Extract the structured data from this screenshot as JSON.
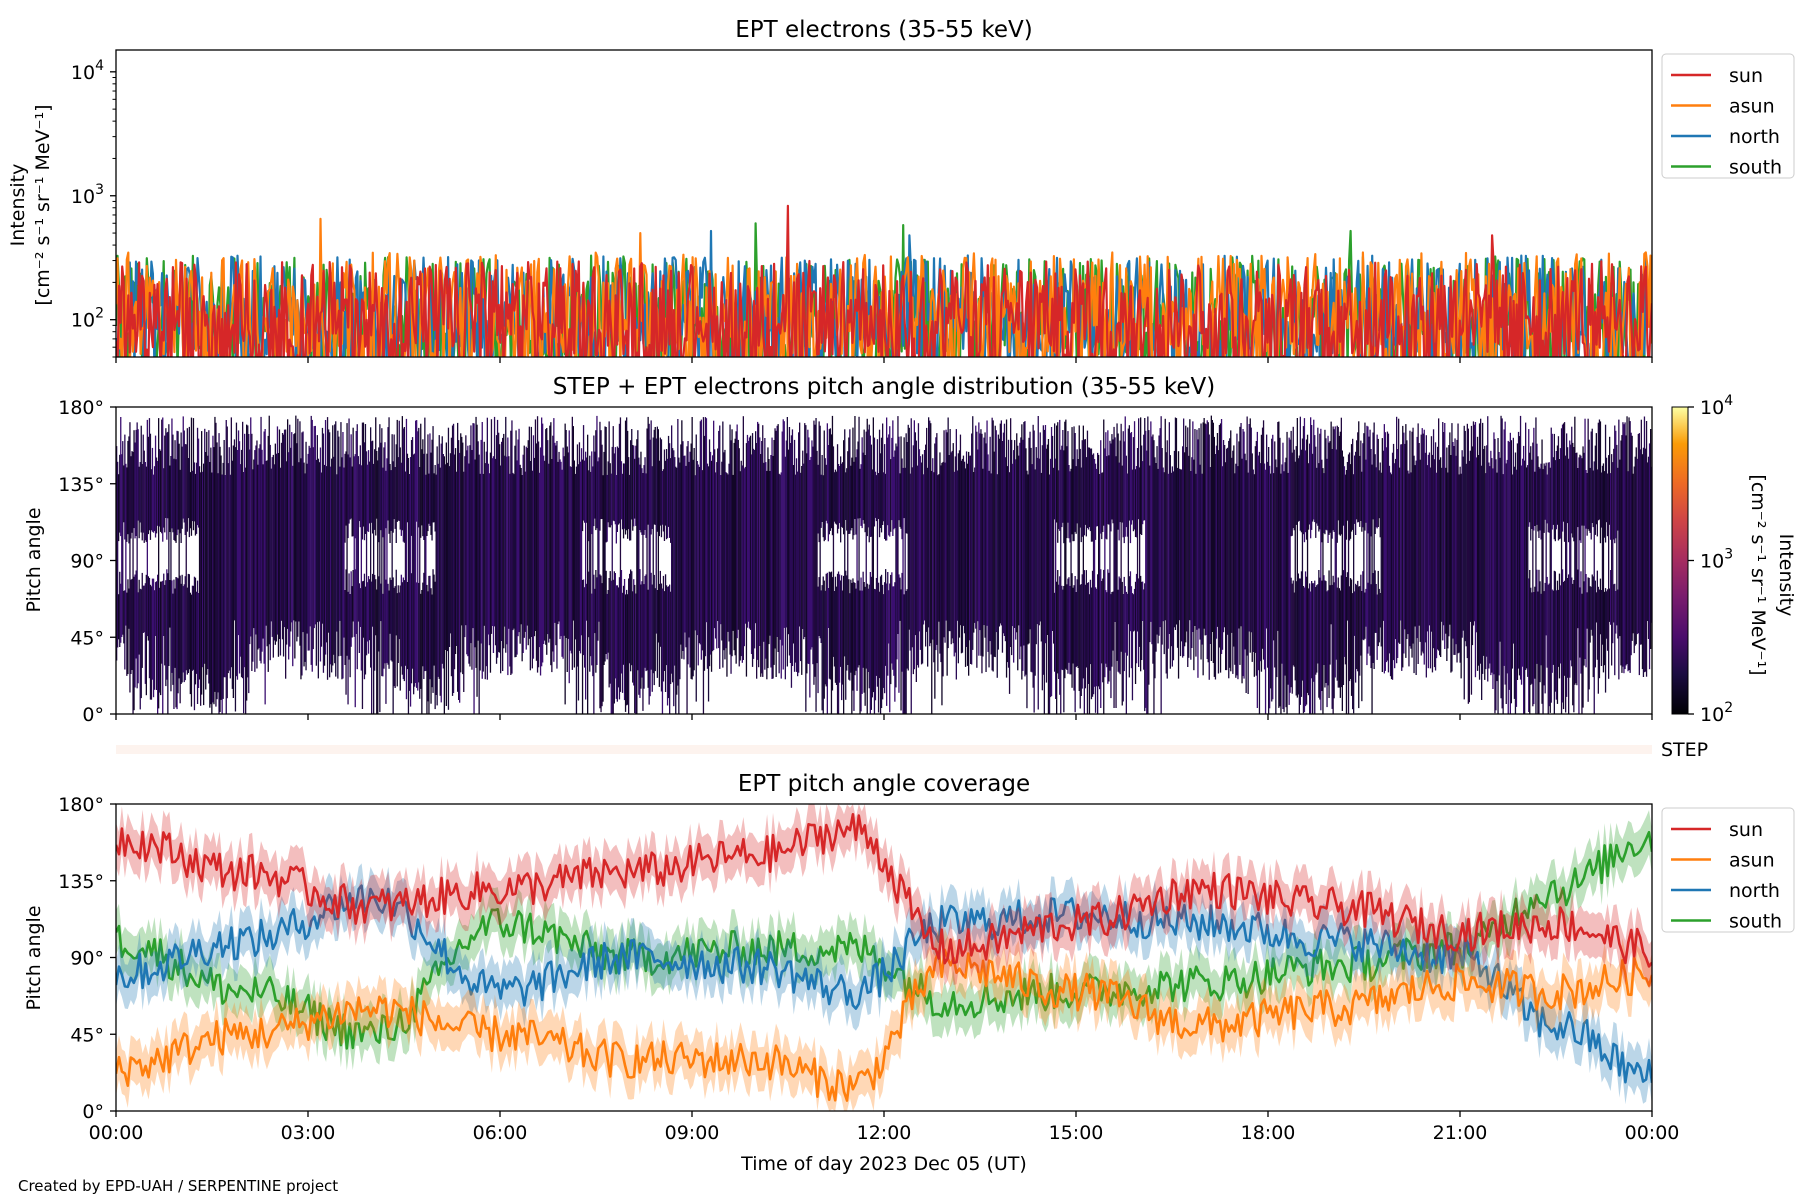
{
  "figure": {
    "footer": "Created by EPD-UAH / SERPENTINE project",
    "xlabel": "Time of day 2023 Dec 05 (UT)",
    "xticks": [
      "00:00",
      "03:00",
      "06:00",
      "09:00",
      "12:00",
      "15:00",
      "18:00",
      "21:00",
      "00:00"
    ]
  },
  "colors": {
    "sun": "#d62728",
    "asun": "#ff7f0e",
    "north": "#1f77b4",
    "south": "#2ca02c",
    "step_band": "#fdf3ee"
  },
  "chart_data": [
    {
      "type": "line",
      "title": "EPT electrons (35-55 keV)",
      "ylabel_line1": "Intensity",
      "ylabel_line2": "[cm⁻² s⁻¹ sr⁻¹ MeV⁻¹]",
      "yscale": "log",
      "ylim": [
        50,
        15000
      ],
      "yticks": [
        {
          "value": 100,
          "base": "10",
          "exp": "2"
        },
        {
          "value": 1000,
          "base": "10",
          "exp": "3"
        },
        {
          "value": 10000,
          "base": "10",
          "exp": "4"
        }
      ],
      "x_range_hours": [
        0,
        24
      ],
      "legend": [
        "sun",
        "asun",
        "north",
        "south"
      ],
      "legend_position": "outside-upper-right",
      "series": [
        {
          "name": "sun",
          "typical_range": [
            50,
            300
          ],
          "peaks": [
            {
              "x": 10.5,
              "y": 830
            },
            {
              "x": 21.5,
              "y": 480
            }
          ]
        },
        {
          "name": "asun",
          "typical_range": [
            50,
            350
          ],
          "peaks": [
            {
              "x": 3.2,
              "y": 650
            },
            {
              "x": 8.2,
              "y": 500
            }
          ]
        },
        {
          "name": "north",
          "typical_range": [
            50,
            330
          ],
          "peaks": [
            {
              "x": 9.3,
              "y": 520
            },
            {
              "x": 12.4,
              "y": 480
            }
          ]
        },
        {
          "name": "south",
          "typical_range": [
            50,
            330
          ],
          "peaks": [
            {
              "x": 10.0,
              "y": 600
            },
            {
              "x": 12.3,
              "y": 580
            },
            {
              "x": 19.3,
              "y": 520
            }
          ]
        }
      ]
    },
    {
      "type": "heatmap",
      "title": "STEP + EPT electrons pitch angle distribution (35-55 keV)",
      "ylabel": "Pitch angle",
      "ylim": [
        0,
        180
      ],
      "yticks": [
        "0°",
        "45°",
        "90°",
        "135°",
        "180°"
      ],
      "x_range_hours": [
        0,
        24
      ],
      "colorbar": {
        "label_line1": "Intensity",
        "label_line2": "[cm⁻² s⁻¹ sr⁻¹ MeV⁻¹]",
        "scale": "log",
        "range": [
          100,
          10000
        ],
        "ticks": [
          {
            "base": "10",
            "exp": "2"
          },
          {
            "base": "10",
            "exp": "3"
          },
          {
            "base": "10",
            "exp": "4"
          }
        ],
        "colormap": "inferno"
      },
      "step_label": "STEP"
    },
    {
      "type": "line",
      "title": "EPT pitch angle coverage",
      "ylabel": "Pitch angle",
      "ylim": [
        0,
        180
      ],
      "yticks": [
        "0°",
        "45°",
        "90°",
        "135°",
        "180°"
      ],
      "x_range_hours": [
        0,
        24
      ],
      "legend": [
        "sun",
        "asun",
        "north",
        "south"
      ],
      "legend_position": "outside-upper-right",
      "series": [
        {
          "name": "sun",
          "x": [
            0,
            2,
            4,
            6,
            8,
            10,
            11.5,
            13,
            15,
            17,
            19,
            21,
            22.5,
            24
          ],
          "y": [
            160,
            140,
            120,
            130,
            140,
            150,
            165,
            95,
            110,
            130,
            120,
            105,
            110,
            95
          ]
        },
        {
          "name": "asun",
          "x": [
            0,
            2,
            4,
            6,
            8,
            10,
            11.5,
            13,
            15,
            17,
            19,
            21,
            22.5,
            24
          ],
          "y": [
            25,
            45,
            60,
            45,
            30,
            30,
            15,
            85,
            70,
            50,
            60,
            75,
            70,
            80
          ]
        },
        {
          "name": "north",
          "x": [
            0,
            2,
            4,
            6,
            8,
            10,
            11.5,
            13,
            15,
            17,
            19,
            21,
            22.5,
            24
          ],
          "y": [
            80,
            100,
            125,
            70,
            90,
            85,
            70,
            110,
            115,
            110,
            100,
            90,
            50,
            20
          ]
        },
        {
          "name": "south",
          "x": [
            0,
            2,
            4,
            6,
            8,
            10,
            11.5,
            13,
            15,
            17,
            19,
            21,
            22.5,
            24
          ],
          "y": [
            100,
            70,
            45,
            110,
            90,
            95,
            95,
            65,
            70,
            75,
            85,
            95,
            130,
            160
          ]
        }
      ]
    }
  ]
}
